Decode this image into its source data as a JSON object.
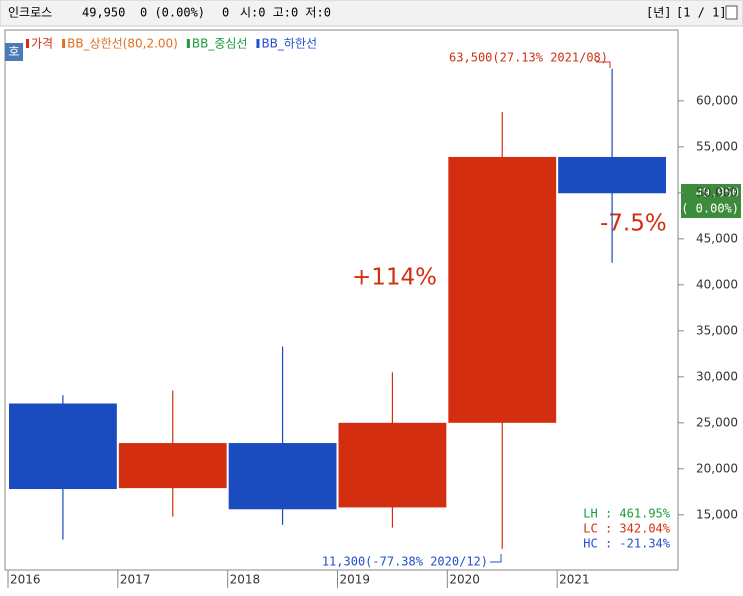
{
  "header": {
    "symbol": "인크로스",
    "price": "49,950",
    "change": "0 (0.00%)",
    "volume": "0",
    "ohl": "시:0 고:0 저:0",
    "period": "[년]",
    "pager": "[1 / 1]",
    "badge": "호"
  },
  "chart_data": {
    "type": "candlestick",
    "legend": [
      "가격",
      "BB_상한선(80,2.00)",
      "BB_중심선",
      "BB_하한선"
    ],
    "legend_colors": [
      "#d03010",
      "#e07020",
      "#1a9a3a",
      "#2050d0"
    ],
    "categories": [
      "2016",
      "2017",
      "2018",
      "2019",
      "2020",
      "2021"
    ],
    "open": [
      27100,
      17900,
      22800,
      15800,
      25000,
      53900
    ],
    "high": [
      28000,
      28500,
      33300,
      30500,
      58800,
      63500
    ],
    "low": [
      12300,
      14800,
      13900,
      13600,
      11300,
      42400
    ],
    "close": [
      17800,
      22800,
      15600,
      25000,
      53900,
      49950
    ],
    "up_color": "#d42e10",
    "down_color": "#1a4cc0",
    "ylim": [
      9000,
      67700
    ],
    "yticks": [
      {
        "value": 15000,
        "label": "15,000"
      },
      {
        "value": 20000,
        "label": "20,000"
      },
      {
        "value": 25000,
        "label": "25,000"
      },
      {
        "value": 30000,
        "label": "30,000"
      },
      {
        "value": 35000,
        "label": "35,000"
      },
      {
        "value": 40000,
        "label": "40,000"
      },
      {
        "value": 45000,
        "label": "45,000"
      },
      {
        "value": 50000,
        "label": "50,000"
      },
      {
        "value": 55000,
        "label": "55,000"
      },
      {
        "value": 60000,
        "label": "60,000"
      }
    ],
    "annotations": {
      "high_note": "63,500(27.13% 2021/08)",
      "low_note": "11,300(-77.38% 2020/12)",
      "rise": "+114%",
      "fall": "-7.5%",
      "last_price": "49,950",
      "last_change": "( 0.00%)"
    },
    "stats": [
      "LH :  461.95%",
      "LC :  342.04%",
      "HC :  -21.34%"
    ],
    "stats_colors": [
      "#1a9a3a",
      "#d03010",
      "#2050d0"
    ]
  }
}
